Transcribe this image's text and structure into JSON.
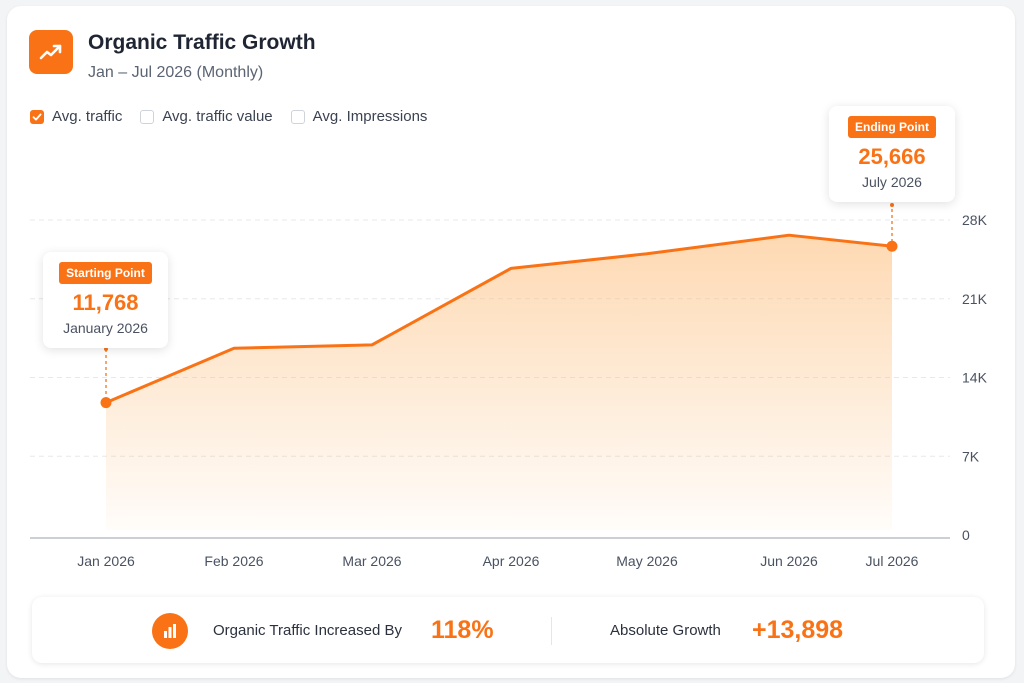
{
  "header": {
    "title": "Organic Traffic Growth",
    "subtitle": "Jan – Jul 2026 (Monthly)",
    "icon": "trend-up-icon"
  },
  "toggles": [
    {
      "label": "Avg. traffic",
      "checked": true
    },
    {
      "label": "Avg. traffic value",
      "checked": false
    },
    {
      "label": "Avg. Impressions",
      "checked": false
    }
  ],
  "tooltips": {
    "start": {
      "badge": "Starting Point",
      "value": "11,768",
      "date": "January 2026"
    },
    "end": {
      "badge": "Ending Point",
      "value": "25,666",
      "date": "July 2026"
    }
  },
  "summary": {
    "label1": "Organic Traffic Increased By",
    "value1": "118%",
    "label2": "Absolute Growth",
    "value2": "+13,898",
    "icon": "bar-chart-icon"
  },
  "colors": {
    "accent": "#f97316",
    "accent_light": "#fdba74",
    "text_dark": "#1f2533"
  },
  "chart_data": {
    "type": "area",
    "categories": [
      "Jan 2026",
      "Feb 2026",
      "Mar 2026",
      "Apr 2026",
      "May 2026",
      "Jun 2026",
      "Jul 2026"
    ],
    "series": [
      {
        "values": [
          11768,
          16600,
          16900,
          23700,
          25000,
          26650,
          25666
        ]
      }
    ],
    "yticks": [
      0,
      7000,
      14000,
      21000,
      28000
    ],
    "ytick_labels": [
      "0",
      "7K",
      "14K",
      "21K",
      "28K"
    ],
    "ylim": [
      0,
      28000
    ],
    "grid": true,
    "y_axis_position": "right"
  }
}
